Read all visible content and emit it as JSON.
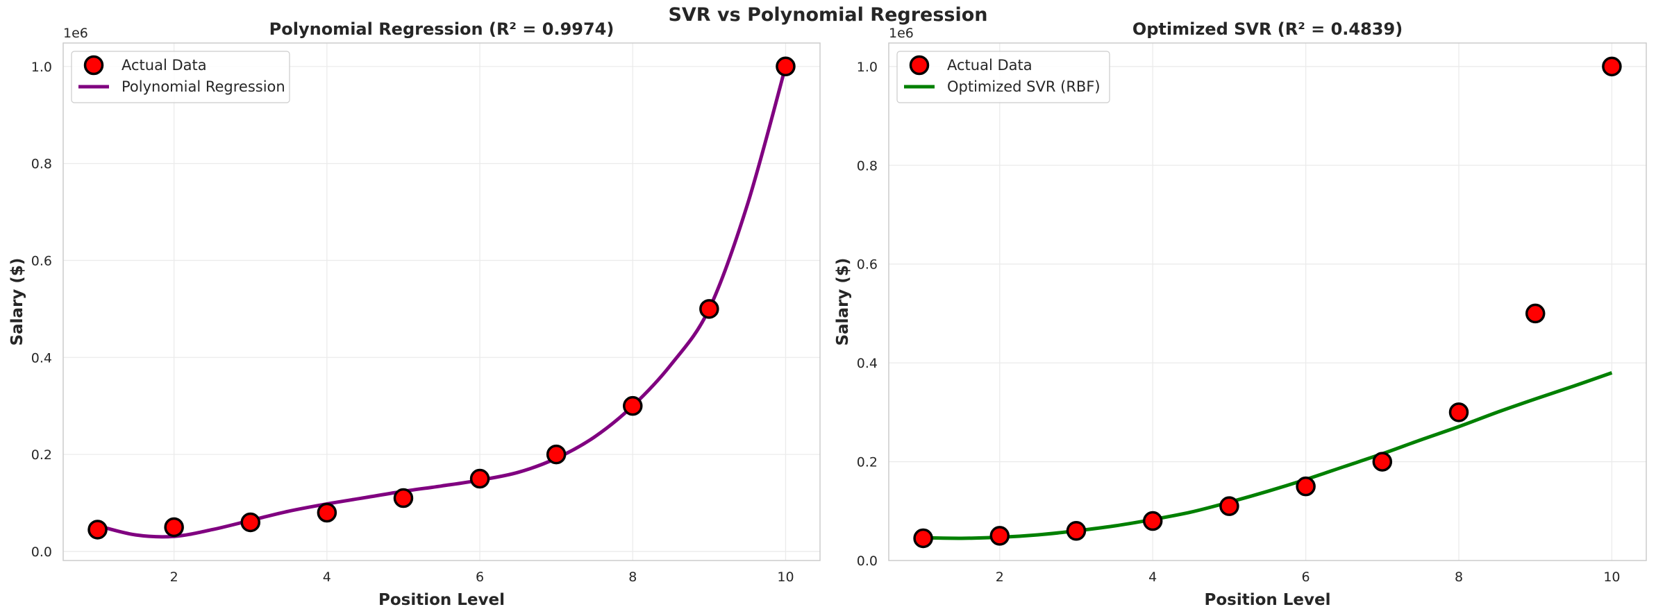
{
  "figure": {
    "suptitle": "SVR vs Polynomial Regression"
  },
  "chart_data": [
    {
      "type": "scatter",
      "title": "Polynomial Regression (R² = 0.9974)",
      "xlabel": "Position Level",
      "ylabel": "Salary ($)",
      "offset_label": "1e6",
      "xlim": [
        0.55,
        10.45
      ],
      "ylim": [
        -0.0187,
        1.0483
      ],
      "xticks": [
        2,
        4,
        6,
        8,
        10
      ],
      "xtick_labels": [
        "2",
        "4",
        "6",
        "8",
        "10"
      ],
      "yticks": [
        0.0,
        0.2,
        0.4,
        0.6,
        0.8,
        1.0
      ],
      "ytick_labels": [
        "0.0",
        "0.2",
        "0.4",
        "0.6",
        "0.8",
        "1.0"
      ],
      "grid": true,
      "legend_position": "top-left",
      "series": [
        {
          "name": "Actual Data",
          "kind": "scatter",
          "color": "#ff0000",
          "edge_color": "#000000",
          "x": [
            1,
            2,
            3,
            4,
            5,
            6,
            7,
            8,
            9,
            10
          ],
          "y": [
            0.045,
            0.05,
            0.06,
            0.08,
            0.11,
            0.15,
            0.2,
            0.3,
            0.5,
            1.0
          ]
        },
        {
          "name": "Polynomial Regression",
          "kind": "line",
          "color": "#800080",
          "x": [
            1,
            1.5,
            2,
            2.5,
            3,
            3.5,
            4,
            4.5,
            5,
            5.5,
            6,
            6.5,
            7,
            7.5,
            8,
            8.5,
            9,
            9.5,
            10
          ],
          "y": [
            0.053,
            0.034,
            0.031,
            0.045,
            0.064,
            0.083,
            0.098,
            0.111,
            0.124,
            0.135,
            0.147,
            0.163,
            0.192,
            0.236,
            0.3,
            0.385,
            0.5,
            0.715,
            1.0
          ]
        }
      ]
    },
    {
      "type": "scatter",
      "title": "Optimized SVR (R² = 0.4839)",
      "xlabel": "Position Level",
      "ylabel": "Salary ($)",
      "offset_label": "1e6",
      "xlim": [
        0.55,
        10.45
      ],
      "ylim": [
        0.0,
        1.0475
      ],
      "xticks": [
        2,
        4,
        6,
        8,
        10
      ],
      "xtick_labels": [
        "2",
        "4",
        "6",
        "8",
        "10"
      ],
      "yticks": [
        0.0,
        0.2,
        0.4,
        0.6,
        0.8,
        1.0
      ],
      "ytick_labels": [
        "0.0",
        "0.2",
        "0.4",
        "0.6",
        "0.8",
        "1.0"
      ],
      "grid": true,
      "legend_position": "top-left",
      "series": [
        {
          "name": "Actual Data",
          "kind": "scatter",
          "color": "#ff0000",
          "edge_color": "#000000",
          "x": [
            1,
            2,
            3,
            4,
            5,
            6,
            7,
            8,
            9,
            10
          ],
          "y": [
            0.045,
            0.05,
            0.06,
            0.08,
            0.11,
            0.15,
            0.2,
            0.3,
            0.5,
            1.0
          ]
        },
        {
          "name": "Optimized SVR (RBF)",
          "kind": "line",
          "color": "#008000",
          "x": [
            1,
            1.5,
            2,
            2.5,
            3,
            3.5,
            4,
            4.5,
            5,
            5.5,
            6,
            6.5,
            7,
            7.5,
            8,
            8.5,
            9,
            9.5,
            10
          ],
          "y": [
            0.046,
            0.045,
            0.047,
            0.052,
            0.06,
            0.07,
            0.083,
            0.098,
            0.118,
            0.14,
            0.164,
            0.19,
            0.216,
            0.244,
            0.271,
            0.3,
            0.327,
            0.353,
            0.38
          ]
        }
      ]
    }
  ]
}
